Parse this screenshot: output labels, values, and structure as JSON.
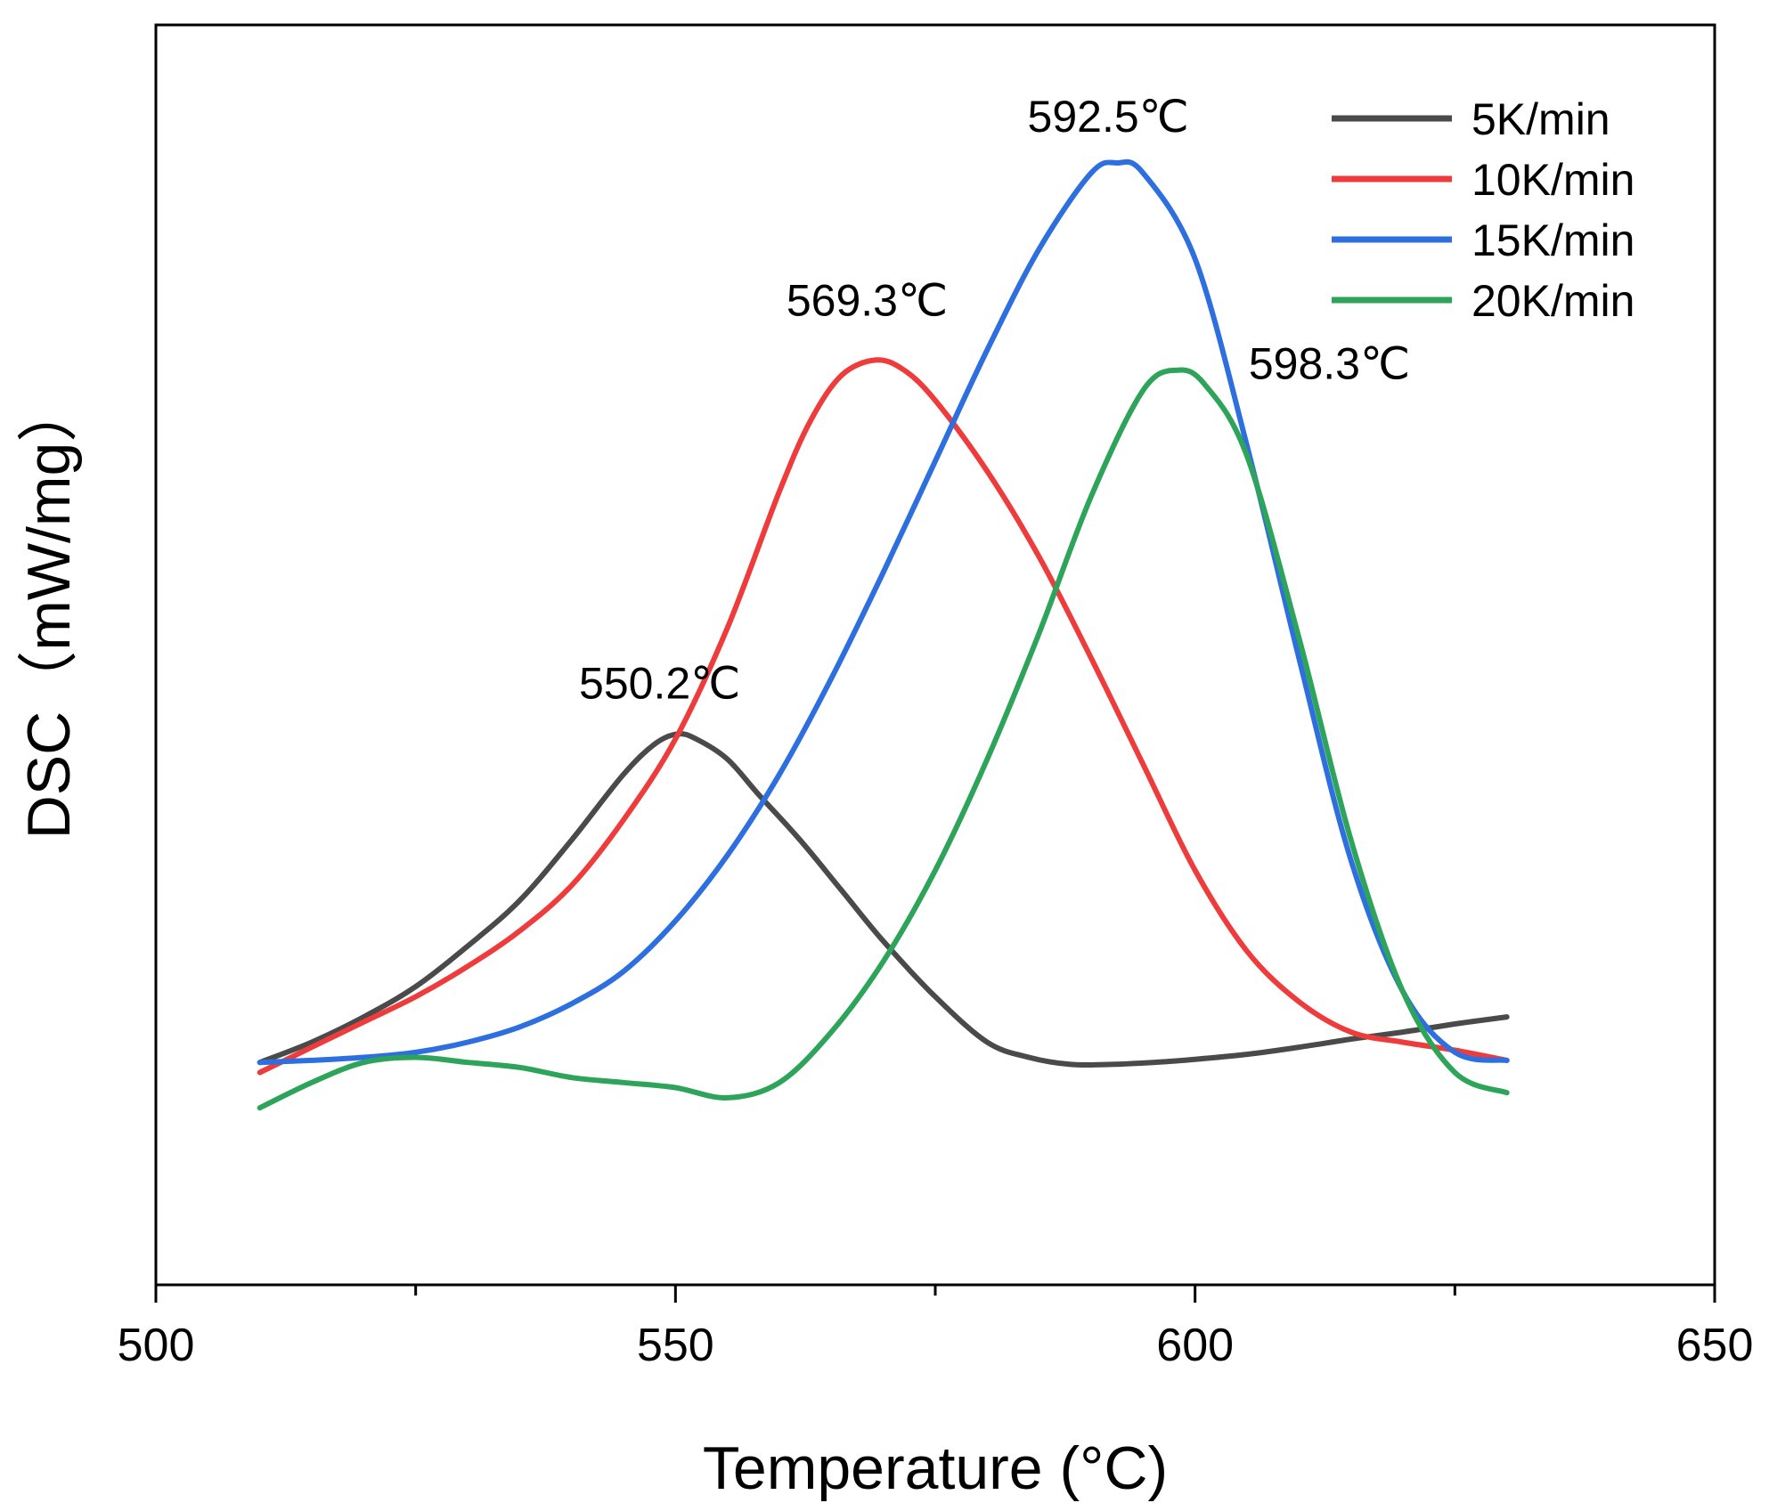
{
  "chart_data": {
    "type": "line",
    "title": "",
    "xlabel": "Temperature (°C)",
    "ylabel": "DSC（mW/mg）",
    "xlim": [
      500,
      650
    ],
    "ylim": [
      0,
      1
    ],
    "x_ticks": [
      500,
      550,
      600,
      650
    ],
    "x_tick_labels": [
      "500",
      "550",
      "600",
      "650"
    ],
    "x_minor_ticks": [
      525,
      575,
      625
    ],
    "y_ticks_labeled": false,
    "grid": false,
    "legend_position": "top-right",
    "series": [
      {
        "name": "5K/min",
        "color": "#4a4a4a",
        "x": [
          510,
          515,
          520,
          525,
          530,
          535,
          540,
          545,
          548,
          550.2,
          552,
          555,
          558,
          562,
          566,
          570,
          575,
          580,
          584,
          588,
          592,
          596,
          600,
          605,
          610,
          615,
          620,
          625,
          630
        ],
        "y": [
          0.11,
          0.13,
          0.155,
          0.185,
          0.225,
          0.27,
          0.33,
          0.395,
          0.425,
          0.435,
          0.43,
          0.41,
          0.375,
          0.33,
          0.28,
          0.23,
          0.175,
          0.13,
          0.115,
          0.108,
          0.108,
          0.11,
          0.113,
          0.118,
          0.125,
          0.133,
          0.14,
          0.148,
          0.155
        ]
      },
      {
        "name": "10K/min",
        "color": "#ee3b3b",
        "x": [
          510,
          515,
          520,
          525,
          530,
          535,
          540,
          545,
          550,
          555,
          560,
          563,
          566,
          569.3,
          572,
          575,
          580,
          585,
          590,
          595,
          600,
          605,
          610,
          615,
          620,
          625,
          630
        ],
        "y": [
          0.1,
          0.125,
          0.15,
          0.175,
          0.205,
          0.24,
          0.285,
          0.35,
          0.43,
          0.54,
          0.675,
          0.745,
          0.79,
          0.805,
          0.795,
          0.765,
          0.695,
          0.61,
          0.51,
          0.405,
          0.3,
          0.22,
          0.17,
          0.14,
          0.13,
          0.122,
          0.112
        ]
      },
      {
        "name": "15K/min",
        "color": "#2e6fe0",
        "x": [
          510,
          515,
          520,
          525,
          530,
          535,
          540,
          545,
          550,
          555,
          560,
          565,
          570,
          575,
          580,
          585,
          590,
          592.5,
          595,
          600,
          605,
          610,
          615,
          620,
          625,
          630
        ],
        "y": [
          0.11,
          0.112,
          0.115,
          0.12,
          0.13,
          0.145,
          0.168,
          0.2,
          0.25,
          0.315,
          0.395,
          0.49,
          0.595,
          0.705,
          0.815,
          0.915,
          0.99,
          1.0,
          0.99,
          0.905,
          0.72,
          0.51,
          0.31,
          0.18,
          0.12,
          0.112
        ]
      },
      {
        "name": "20K/min",
        "color": "#2ea35a",
        "x": [
          510,
          515,
          520,
          525,
          530,
          535,
          540,
          545,
          550,
          555,
          560,
          565,
          570,
          575,
          580,
          585,
          590,
          595,
          598.3,
          601,
          605,
          610,
          615,
          620,
          625,
          630
        ],
        "y": [
          0.065,
          0.09,
          0.11,
          0.115,
          0.11,
          0.105,
          0.095,
          0.09,
          0.085,
          0.075,
          0.09,
          0.14,
          0.21,
          0.3,
          0.41,
          0.535,
          0.67,
          0.775,
          0.795,
          0.78,
          0.71,
          0.53,
          0.33,
          0.18,
          0.1,
          0.08
        ]
      }
    ],
    "annotations": [
      {
        "text": "550.2℃",
        "x": 550.2,
        "y": 0.435,
        "series": "5K/min"
      },
      {
        "text": "569.3℃",
        "x": 569.3,
        "y": 0.805,
        "series": "10K/min"
      },
      {
        "text": "592.5℃",
        "x": 592.5,
        "y": 1.0,
        "series": "15K/min"
      },
      {
        "text": "598.3℃",
        "x": 598.3,
        "y": 0.795,
        "series": "20K/min"
      }
    ]
  }
}
